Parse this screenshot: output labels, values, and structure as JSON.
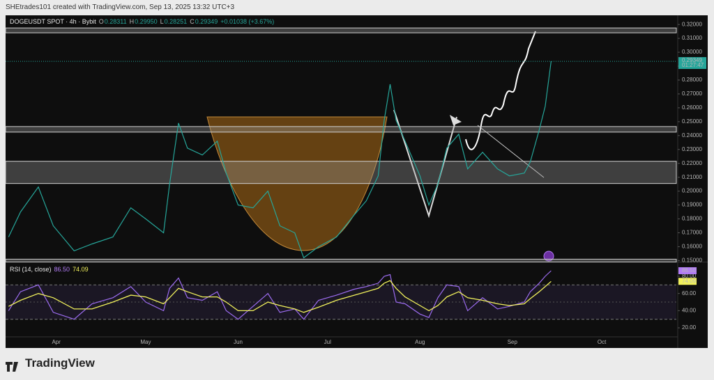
{
  "header": {
    "credit": "SHEtrades101 created with TradingView.com, Sep 13, 2025 13:32 UTC+3"
  },
  "footer": {
    "brand": "TradingView"
  },
  "chart_data": [
    {
      "type": "line",
      "title": "DOGEUSDT SPOT · 4h · Bybit",
      "legend": [
        {
          "key": "O",
          "text": "0.28311"
        },
        {
          "key": "H",
          "text": "0.29950"
        },
        {
          "key": "L",
          "text": "0.28251"
        },
        {
          "key": "C",
          "text": "0.29349"
        }
      ],
      "change": "+0.01038 (+3.67%)",
      "x": [
        -16,
        -12,
        -6,
        -1,
        6,
        12,
        19,
        25,
        30,
        36,
        38,
        41,
        44,
        49,
        54,
        57,
        61,
        66,
        71,
        75,
        80,
        83,
        88,
        94,
        100,
        104,
        108,
        110,
        112,
        114,
        117,
        122,
        125,
        128,
        131,
        135,
        138,
        143,
        148,
        152,
        157,
        159,
        162,
        164,
        166
      ],
      "series": [
        {
          "name": "DOGEUSDT",
          "color": "#26a69a",
          "values": [
            0.167,
            0.185,
            0.203,
            0.175,
            0.157,
            0.162,
            0.167,
            0.188,
            0.18,
            0.17,
            0.205,
            0.249,
            0.231,
            0.226,
            0.236,
            0.213,
            0.19,
            0.188,
            0.2,
            0.175,
            0.17,
            0.152,
            0.16,
            0.167,
            0.183,
            0.193,
            0.211,
            0.251,
            0.277,
            0.251,
            0.236,
            0.211,
            0.19,
            0.205,
            0.231,
            0.241,
            0.216,
            0.228,
            0.216,
            0.211,
            0.213,
            0.221,
            0.244,
            0.261,
            0.29349
          ]
        }
      ],
      "last_price": {
        "value": 0.29349,
        "label": "0.29349"
      },
      "countdown": "01:27:47",
      "zones": [
        [
          0.314,
          0.3175
        ],
        [
          0.2425,
          0.2465
        ],
        [
          0.2055,
          0.2215
        ],
        [
          0.149,
          0.151
        ]
      ],
      "xlim": [
        -17,
        208
      ],
      "ylim": [
        0.1497,
        0.3266
      ],
      "yticks": [
        {
          "value": 0.15,
          "label": "0.15000"
        },
        {
          "value": 0.16,
          "label": "0.16000"
        },
        {
          "value": 0.17,
          "label": "0.17000"
        },
        {
          "value": 0.18,
          "label": "0.18000"
        },
        {
          "value": 0.19,
          "label": "0.19000"
        },
        {
          "value": 0.2,
          "label": "0.20000"
        },
        {
          "value": 0.21,
          "label": "0.21000"
        },
        {
          "value": 0.22,
          "label": "0.22000"
        },
        {
          "value": 0.23,
          "label": "0.23000"
        },
        {
          "value": 0.24,
          "label": "0.24000"
        },
        {
          "value": 0.25,
          "label": "0.25000"
        },
        {
          "value": 0.26,
          "label": "0.26000"
        },
        {
          "value": 0.27,
          "label": "0.27000"
        },
        {
          "value": 0.28,
          "label": "0.28000"
        },
        {
          "value": 0.29,
          "label": "0.29000"
        },
        {
          "value": 0.3,
          "label": "0.30000"
        },
        {
          "value": 0.31,
          "label": "0.31000"
        },
        {
          "value": 0.32,
          "label": "0.32000"
        }
      ],
      "grid": false
    },
    {
      "type": "line",
      "title": "RSI (14, close)",
      "current": [
        {
          "value": 86.5,
          "label": "86.50",
          "color": "#b27cf6"
        },
        {
          "value": 74.09,
          "label": "74.09",
          "color": "#f2f25c"
        }
      ],
      "x": [
        -16,
        -12,
        -6,
        -1,
        6,
        12,
        19,
        25,
        30,
        36,
        38,
        41,
        44,
        49,
        54,
        57,
        61,
        66,
        71,
        75,
        80,
        83,
        88,
        94,
        100,
        104,
        108,
        110,
        112,
        114,
        117,
        122,
        125,
        128,
        131,
        135,
        138,
        143,
        148,
        152,
        157,
        159,
        162,
        164,
        166
      ],
      "series": [
        {
          "name": "RSI",
          "color": "#9c6cf0",
          "values": [
            40,
            62,
            70,
            38,
            30,
            48,
            55,
            68,
            50,
            40,
            66,
            78,
            55,
            52,
            62,
            40,
            30,
            45,
            60,
            38,
            42,
            30,
            52,
            58,
            65,
            68,
            72,
            80,
            82,
            50,
            48,
            36,
            32,
            55,
            70,
            68,
            40,
            55,
            42,
            45,
            50,
            62,
            72,
            80,
            86.5
          ]
        },
        {
          "name": "RSI MA",
          "color": "#f2f25c",
          "values": [
            45,
            52,
            60,
            55,
            42,
            42,
            50,
            58,
            56,
            48,
            55,
            66,
            62,
            56,
            56,
            50,
            40,
            40,
            50,
            46,
            42,
            38,
            44,
            52,
            58,
            62,
            66,
            72,
            75,
            66,
            56,
            46,
            40,
            46,
            56,
            62,
            55,
            52,
            48,
            46,
            48,
            54,
            62,
            68,
            74.09
          ]
        }
      ],
      "band": [
        30,
        70
      ],
      "midline": 50,
      "xlim": [
        -17,
        208
      ],
      "ylim": [
        10.3,
        95.4
      ],
      "yticks": [
        {
          "value": 20,
          "label": "20.00"
        },
        {
          "value": 40,
          "label": "40.00"
        },
        {
          "value": 60,
          "label": "60.00"
        },
        {
          "value": 80,
          "label": "80.00"
        }
      ],
      "xticks": [
        {
          "value": 0,
          "label": "Apr"
        },
        {
          "value": 30,
          "label": "May"
        },
        {
          "value": 61,
          "label": "Jun"
        },
        {
          "value": 91,
          "label": "Jul"
        },
        {
          "value": 122,
          "label": "Aug"
        },
        {
          "value": 153,
          "label": "Sep"
        },
        {
          "value": 183,
          "label": "Oct"
        }
      ],
      "grid": false
    }
  ]
}
